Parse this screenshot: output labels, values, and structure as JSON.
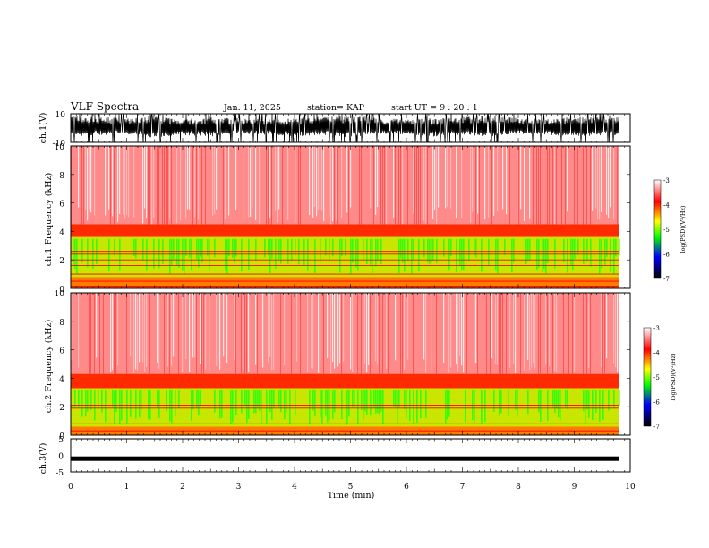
{
  "header": {
    "title": "VLF Spectra",
    "date": "Jan. 11, 2025",
    "station": "station= KAP",
    "start_ut": "start  UT =   9 : 20 : 1"
  },
  "chart_data": [
    {
      "type": "line",
      "name": "ch1-waveform",
      "ylabel": "ch.1(V)",
      "ylim": [
        -10,
        10
      ],
      "ytick_labels": [
        "10",
        "-10"
      ],
      "xlim": [
        0,
        10
      ],
      "style": "dense black trace, amplitude mostly between about -6 and 10 V with many clipped spikes",
      "x": [
        0,
        0.5,
        1,
        1.5,
        2,
        2.5,
        3,
        3.5,
        4,
        4.5,
        5,
        5.5,
        6,
        6.5,
        7,
        7.5,
        8,
        8.5,
        9,
        9.5,
        9.8
      ],
      "y_upper": [
        9,
        8,
        7,
        9,
        6,
        8,
        7,
        6,
        7,
        8,
        9,
        7,
        6,
        7,
        8,
        9,
        7,
        6,
        8,
        9,
        9
      ],
      "y_lower": [
        -6,
        -5,
        -4,
        -7,
        -5,
        -6,
        -4,
        -5,
        -6,
        -5,
        -7,
        -4,
        -5,
        -6,
        -5,
        -6,
        -4,
        -5,
        -6,
        -5,
        -6
      ]
    },
    {
      "type": "heatmap",
      "name": "ch1-spectrogram",
      "ylabel": "ch.1 Frequency (kHz)",
      "ylim": [
        0,
        10
      ],
      "xlim": [
        0,
        10
      ],
      "yticks": [
        0,
        2,
        4,
        6,
        8,
        10
      ],
      "data_end_min": 9.8,
      "color_boundaries_khz": {
        "green_top": 3.6,
        "green_bottom": 0.8,
        "red_above": 4.5
      },
      "colorbar": {
        "label": "log(PSD)(V²/Hz)",
        "range": [
          -7,
          -3
        ],
        "tick_labels": [
          "-3",
          "-4",
          "-5",
          "-6",
          "-7"
        ],
        "colors": [
          "#ffffff",
          "#ff0000",
          "#ffff00",
          "#00ff00",
          "#0000ff",
          "#000000"
        ]
      },
      "lines_khz": [
        0.15,
        0.5,
        1.0,
        1.6,
        2.0,
        2.4,
        2.6
      ]
    },
    {
      "type": "heatmap",
      "name": "ch2-spectrogram",
      "ylabel": "ch.2 Frequency (kHz)",
      "ylim": [
        0,
        10
      ],
      "xlim": [
        0,
        10
      ],
      "yticks": [
        0,
        2,
        4,
        6,
        8,
        10
      ],
      "data_end_min": 9.8,
      "color_boundaries_khz": {
        "green_top": 3.3,
        "green_bottom": 0.6,
        "red_above": 4.3
      },
      "colorbar": {
        "label": "log(PSD)(V²/Hz)",
        "range": [
          -7,
          -3
        ],
        "tick_labels": [
          "-3",
          "-4",
          "-5",
          "-6",
          "-7"
        ],
        "colors": [
          "#ffffff",
          "#ff0000",
          "#ffff00",
          "#00ff00",
          "#0000ff",
          "#000000"
        ]
      },
      "lines_khz": [
        0.3,
        0.8,
        1.9,
        2.1
      ]
    },
    {
      "type": "line",
      "name": "ch3-waveform",
      "ylabel": "ch.3(V)",
      "ylim": [
        -5,
        5
      ],
      "ytick_labels": [
        "5",
        "0",
        "-5"
      ],
      "xlim": [
        0,
        10
      ],
      "style": "thick flat black band near -1 V",
      "x": [
        0,
        9.8
      ],
      "y": [
        -1,
        -1
      ]
    }
  ],
  "xaxis": {
    "label": "Time (min)",
    "tick_labels": [
      "0",
      "1",
      "2",
      "3",
      "4",
      "5",
      "6",
      "7",
      "8",
      "9",
      "10"
    ]
  }
}
